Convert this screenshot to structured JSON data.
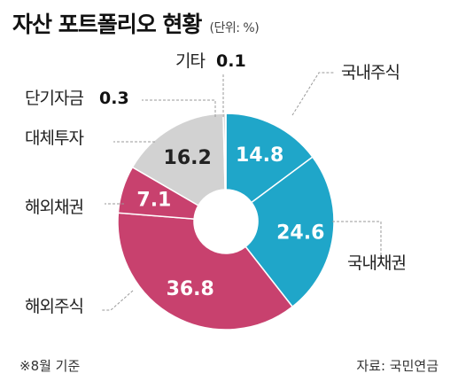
{
  "header": {
    "title": "자산 포트폴리오 현황",
    "unit": "(단위: %)"
  },
  "footer": {
    "note": "※8월 기준",
    "source": "자료: 국민연금"
  },
  "colors": {
    "domestic": "#1fa6c9",
    "foreign": "#c8416e",
    "alternative": "#d2d2d2",
    "minor": "#bcbcbc",
    "leader": "#9a9a9a",
    "value_text_light": "#ffffff",
    "value_text_dark": "#222222"
  },
  "chart_data": {
    "type": "pie",
    "style": "donut",
    "slices": [
      {
        "label": "국내주식",
        "value": 14.8,
        "value_label": "14.8",
        "color": "#1fa6c9"
      },
      {
        "label": "국내채권",
        "value": 24.6,
        "value_label": "24.6",
        "color": "#1fa6c9"
      },
      {
        "label": "해외주식",
        "value": 36.8,
        "value_label": "36.8",
        "color": "#c8416e"
      },
      {
        "label": "해외채권",
        "value": 7.1,
        "value_label": "7.1",
        "color": "#c8416e"
      },
      {
        "label": "대체투자",
        "value": 16.2,
        "value_label": "16.2",
        "color": "#d2d2d2"
      },
      {
        "label": "단기자금",
        "value": 0.3,
        "value_label": "0.3",
        "color": "#bcbcbc"
      },
      {
        "label": "기타",
        "value": 0.1,
        "value_label": "0.1",
        "color": "#bcbcbc"
      }
    ]
  }
}
